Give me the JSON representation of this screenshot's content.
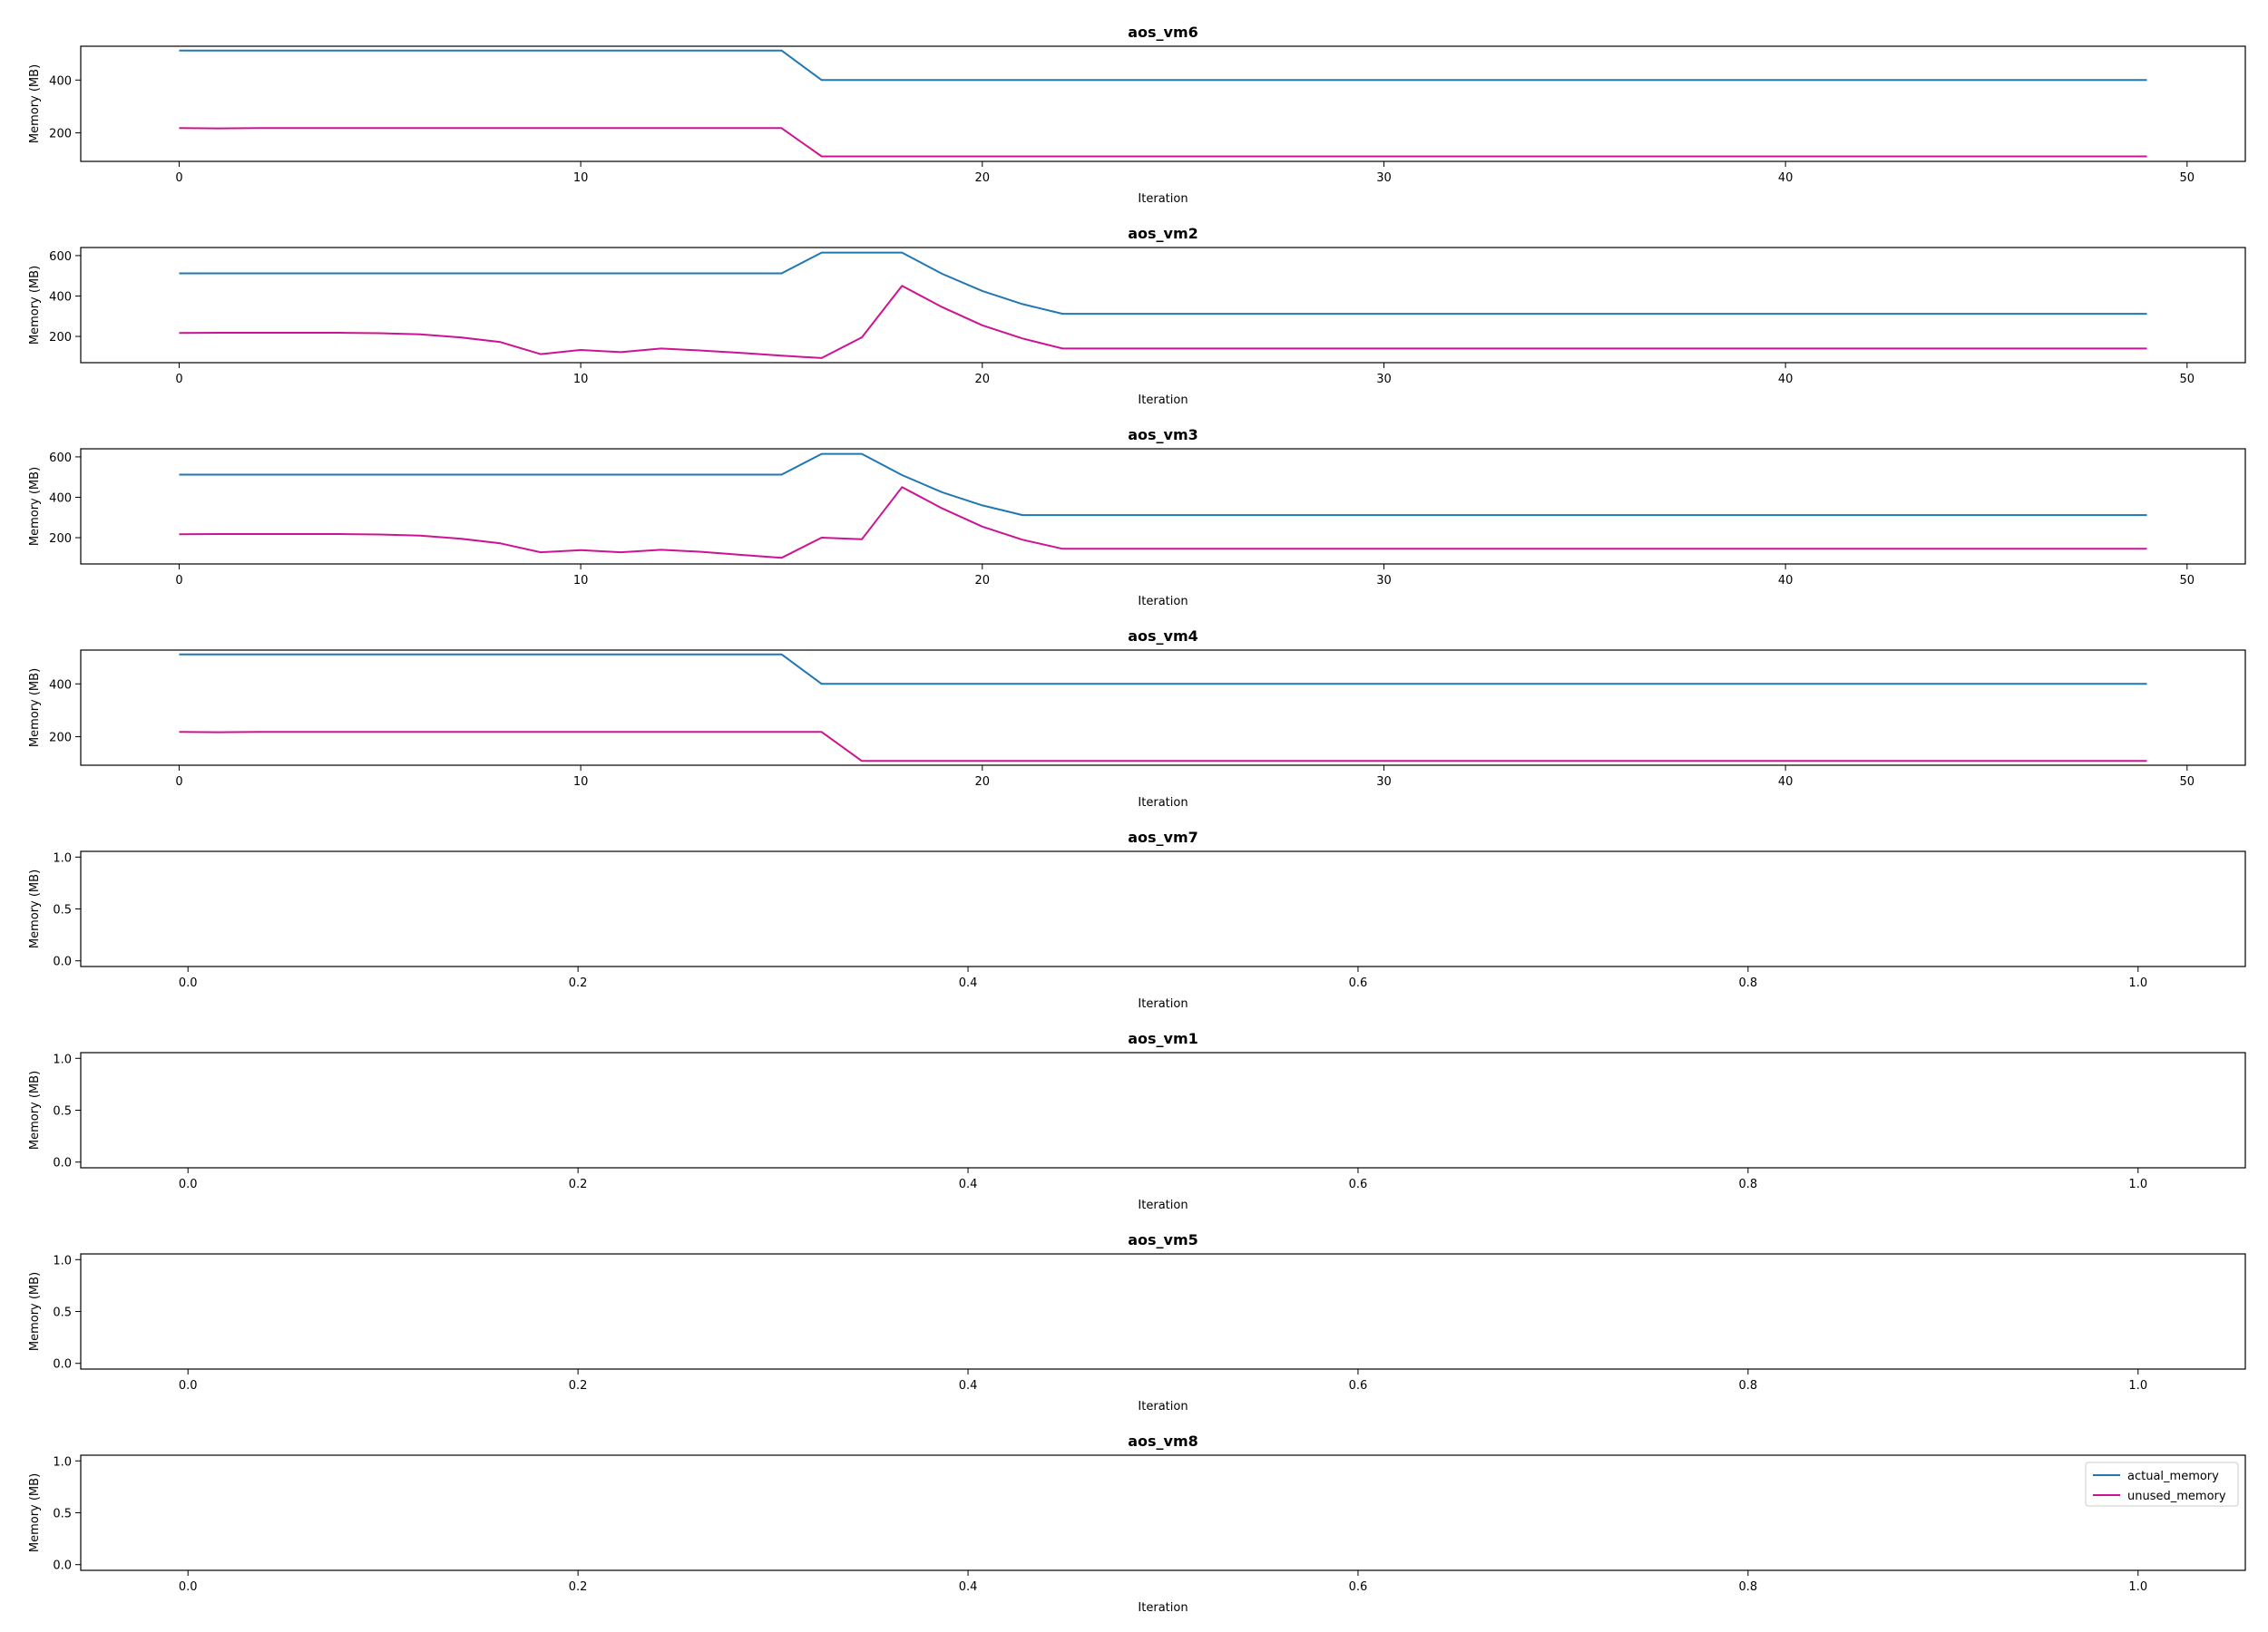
{
  "colors": {
    "actual_memory": "#1f77b4",
    "unused_memory": "#cc1493"
  },
  "legend": {
    "placement": "top-right",
    "panel_index": 7,
    "entries": [
      "actual_memory",
      "unused_memory"
    ]
  },
  "chart_data": [
    {
      "type": "line",
      "title": "aos_vm6",
      "xlabel": "Iteration",
      "ylabel": "Memory (MB)",
      "xlim": [
        -2.45,
        51.45
      ],
      "ylim": [
        92,
        528
      ],
      "xticks": [
        0,
        10,
        20,
        30,
        40,
        50
      ],
      "xtick_labels": [
        "0",
        "10",
        "20",
        "30",
        "40",
        "50"
      ],
      "yticks": [
        200,
        400
      ],
      "ytick_labels": [
        "200",
        "400"
      ],
      "series": [
        {
          "name": "actual_memory",
          "x": [
            0,
            1,
            2,
            3,
            4,
            5,
            6,
            7,
            8,
            9,
            10,
            11,
            12,
            13,
            14,
            15,
            16,
            17,
            18,
            19,
            20,
            21,
            22,
            23,
            24,
            25,
            26,
            27,
            28,
            29,
            30,
            31,
            32,
            33,
            34,
            35,
            36,
            37,
            38,
            39,
            40,
            41,
            42,
            43,
            44,
            45,
            46,
            47,
            48,
            49
          ],
          "y": [
            512,
            512,
            512,
            512,
            512,
            512,
            512,
            512,
            512,
            512,
            512,
            512,
            512,
            512,
            512,
            512,
            400,
            400,
            400,
            400,
            400,
            400,
            400,
            400,
            400,
            400,
            400,
            400,
            400,
            400,
            400,
            400,
            400,
            400,
            400,
            400,
            400,
            400,
            400,
            400,
            400,
            400,
            400,
            400,
            400,
            400,
            400,
            400,
            400,
            400
          ]
        },
        {
          "name": "unused_memory",
          "x": [
            0,
            1,
            2,
            3,
            4,
            5,
            6,
            7,
            8,
            9,
            10,
            11,
            12,
            13,
            14,
            15,
            16,
            17,
            18,
            19,
            20,
            21,
            22,
            23,
            24,
            25,
            26,
            27,
            28,
            29,
            30,
            31,
            32,
            33,
            34,
            35,
            36,
            37,
            38,
            39,
            40,
            41,
            42,
            43,
            44,
            45,
            46,
            47,
            48,
            49
          ],
          "y": [
            218,
            217,
            218,
            218,
            218,
            218,
            218,
            218,
            218,
            218,
            218,
            218,
            218,
            218,
            218,
            218,
            111,
            111,
            111,
            111,
            111,
            111,
            111,
            111,
            111,
            111,
            111,
            111,
            111,
            111,
            111,
            111,
            111,
            111,
            111,
            111,
            111,
            111,
            111,
            111,
            111,
            111,
            111,
            111,
            111,
            111,
            111,
            111,
            111,
            111
          ]
        }
      ]
    },
    {
      "type": "line",
      "title": "aos_vm2",
      "xlabel": "Iteration",
      "ylabel": "Memory (MB)",
      "xlim": [
        -2.45,
        51.45
      ],
      "ylim": [
        70,
        640
      ],
      "xticks": [
        0,
        10,
        20,
        30,
        40,
        50
      ],
      "xtick_labels": [
        "0",
        "10",
        "20",
        "30",
        "40",
        "50"
      ],
      "yticks": [
        200,
        400,
        600
      ],
      "ytick_labels": [
        "200",
        "400",
        "600"
      ],
      "series": [
        {
          "name": "actual_memory",
          "x": [
            0,
            1,
            2,
            3,
            4,
            5,
            6,
            7,
            8,
            9,
            10,
            11,
            12,
            13,
            14,
            15,
            16,
            17,
            18,
            19,
            20,
            21,
            22,
            23,
            24,
            25,
            26,
            27,
            28,
            29,
            30,
            31,
            32,
            33,
            34,
            35,
            36,
            37,
            38,
            39,
            40,
            41,
            42,
            43,
            44,
            45,
            46,
            47,
            48,
            49
          ],
          "y": [
            512,
            512,
            512,
            512,
            512,
            512,
            512,
            512,
            512,
            512,
            512,
            512,
            512,
            512,
            512,
            512,
            615,
            615,
            615,
            510,
            425,
            360,
            312,
            312,
            312,
            312,
            312,
            312,
            312,
            312,
            312,
            312,
            312,
            312,
            312,
            312,
            312,
            312,
            312,
            312,
            312,
            312,
            312,
            312,
            312,
            312,
            312,
            312,
            312,
            312
          ]
        },
        {
          "name": "unused_memory",
          "x": [
            0,
            1,
            2,
            3,
            4,
            5,
            6,
            7,
            8,
            9,
            10,
            11,
            12,
            13,
            14,
            15,
            16,
            17,
            18,
            19,
            20,
            21,
            22,
            23,
            24,
            25,
            26,
            27,
            28,
            29,
            30,
            31,
            32,
            33,
            34,
            35,
            36,
            37,
            38,
            39,
            40,
            41,
            42,
            43,
            44,
            45,
            46,
            47,
            48,
            49
          ],
          "y": [
            217,
            218,
            218,
            218,
            218,
            216,
            210,
            195,
            172,
            112,
            133,
            122,
            140,
            130,
            118,
            105,
            93,
            195,
            450,
            345,
            255,
            190,
            140,
            140,
            140,
            140,
            140,
            140,
            140,
            140,
            140,
            140,
            140,
            140,
            140,
            140,
            140,
            140,
            140,
            140,
            140,
            140,
            140,
            140,
            140,
            140,
            140,
            140,
            140,
            140
          ]
        }
      ]
    },
    {
      "type": "line",
      "title": "aos_vm3",
      "xlabel": "Iteration",
      "ylabel": "Memory (MB)",
      "xlim": [
        -2.45,
        51.45
      ],
      "ylim": [
        70,
        640
      ],
      "xticks": [
        0,
        10,
        20,
        30,
        40,
        50
      ],
      "xtick_labels": [
        "0",
        "10",
        "20",
        "30",
        "40",
        "50"
      ],
      "yticks": [
        200,
        400,
        600
      ],
      "ytick_labels": [
        "200",
        "400",
        "600"
      ],
      "series": [
        {
          "name": "actual_memory",
          "x": [
            0,
            1,
            2,
            3,
            4,
            5,
            6,
            7,
            8,
            9,
            10,
            11,
            12,
            13,
            14,
            15,
            16,
            17,
            18,
            19,
            20,
            21,
            22,
            23,
            24,
            25,
            26,
            27,
            28,
            29,
            30,
            31,
            32,
            33,
            34,
            35,
            36,
            37,
            38,
            39,
            40,
            41,
            42,
            43,
            44,
            45,
            46,
            47,
            48,
            49
          ],
          "y": [
            512,
            512,
            512,
            512,
            512,
            512,
            512,
            512,
            512,
            512,
            512,
            512,
            512,
            512,
            512,
            512,
            615,
            615,
            510,
            425,
            360,
            312,
            312,
            312,
            312,
            312,
            312,
            312,
            312,
            312,
            312,
            312,
            312,
            312,
            312,
            312,
            312,
            312,
            312,
            312,
            312,
            312,
            312,
            312,
            312,
            312,
            312,
            312,
            312,
            312
          ]
        },
        {
          "name": "unused_memory",
          "x": [
            0,
            1,
            2,
            3,
            4,
            5,
            6,
            7,
            8,
            9,
            10,
            11,
            12,
            13,
            14,
            15,
            16,
            17,
            18,
            19,
            20,
            21,
            22,
            23,
            24,
            25,
            26,
            27,
            28,
            29,
            30,
            31,
            32,
            33,
            34,
            35,
            36,
            37,
            38,
            39,
            40,
            41,
            42,
            43,
            44,
            45,
            46,
            47,
            48,
            49
          ],
          "y": [
            217,
            218,
            218,
            218,
            218,
            216,
            210,
            195,
            172,
            128,
            138,
            128,
            140,
            130,
            115,
            100,
            200,
            192,
            450,
            345,
            255,
            190,
            145,
            145,
            145,
            145,
            145,
            145,
            145,
            145,
            145,
            145,
            145,
            145,
            145,
            145,
            145,
            145,
            145,
            145,
            145,
            145,
            145,
            145,
            145,
            145,
            145,
            145,
            145,
            145
          ]
        }
      ]
    },
    {
      "type": "line",
      "title": "aos_vm4",
      "xlabel": "Iteration",
      "ylabel": "Memory (MB)",
      "xlim": [
        -2.45,
        51.45
      ],
      "ylim": [
        92,
        528
      ],
      "xticks": [
        0,
        10,
        20,
        30,
        40,
        50
      ],
      "xtick_labels": [
        "0",
        "10",
        "20",
        "30",
        "40",
        "50"
      ],
      "yticks": [
        200,
        400
      ],
      "ytick_labels": [
        "200",
        "400"
      ],
      "series": [
        {
          "name": "actual_memory",
          "x": [
            0,
            1,
            2,
            3,
            4,
            5,
            6,
            7,
            8,
            9,
            10,
            11,
            12,
            13,
            14,
            15,
            16,
            17,
            18,
            19,
            20,
            21,
            22,
            23,
            24,
            25,
            26,
            27,
            28,
            29,
            30,
            31,
            32,
            33,
            34,
            35,
            36,
            37,
            38,
            39,
            40,
            41,
            42,
            43,
            44,
            45,
            46,
            47,
            48,
            49
          ],
          "y": [
            512,
            512,
            512,
            512,
            512,
            512,
            512,
            512,
            512,
            512,
            512,
            512,
            512,
            512,
            512,
            512,
            400,
            400,
            400,
            400,
            400,
            400,
            400,
            400,
            400,
            400,
            400,
            400,
            400,
            400,
            400,
            400,
            400,
            400,
            400,
            400,
            400,
            400,
            400,
            400,
            400,
            400,
            400,
            400,
            400,
            400,
            400,
            400,
            400,
            400
          ]
        },
        {
          "name": "unused_memory",
          "x": [
            0,
            1,
            2,
            3,
            4,
            5,
            6,
            7,
            8,
            9,
            10,
            11,
            12,
            13,
            14,
            15,
            16,
            17,
            18,
            19,
            20,
            21,
            22,
            23,
            24,
            25,
            26,
            27,
            28,
            29,
            30,
            31,
            32,
            33,
            34,
            35,
            36,
            37,
            38,
            39,
            40,
            41,
            42,
            43,
            44,
            45,
            46,
            47,
            48,
            49
          ],
          "y": [
            218,
            217,
            218,
            218,
            218,
            218,
            218,
            218,
            218,
            218,
            218,
            218,
            218,
            218,
            218,
            218,
            218,
            108,
            108,
            108,
            108,
            108,
            108,
            108,
            108,
            108,
            108,
            108,
            108,
            108,
            108,
            108,
            108,
            108,
            108,
            108,
            108,
            108,
            108,
            108,
            108,
            108,
            108,
            108,
            108,
            108,
            108,
            108,
            108,
            108
          ]
        }
      ]
    },
    {
      "type": "line",
      "title": "aos_vm7",
      "xlabel": "Iteration",
      "ylabel": "Memory (MB)",
      "xlim": [
        -0.055,
        1.055
      ],
      "ylim": [
        -0.055,
        1.055
      ],
      "xticks": [
        0,
        0.2,
        0.4,
        0.6,
        0.8,
        1.0
      ],
      "xtick_labels": [
        "0.0",
        "0.2",
        "0.4",
        "0.6",
        "0.8",
        "1.0"
      ],
      "yticks": [
        0,
        0.5,
        1.0
      ],
      "ytick_labels": [
        "0.0",
        "0.5",
        "1.0"
      ],
      "series": []
    },
    {
      "type": "line",
      "title": "aos_vm1",
      "xlabel": "Iteration",
      "ylabel": "Memory (MB)",
      "xlim": [
        -0.055,
        1.055
      ],
      "ylim": [
        -0.055,
        1.055
      ],
      "xticks": [
        0,
        0.2,
        0.4,
        0.6,
        0.8,
        1.0
      ],
      "xtick_labels": [
        "0.0",
        "0.2",
        "0.4",
        "0.6",
        "0.8",
        "1.0"
      ],
      "yticks": [
        0,
        0.5,
        1.0
      ],
      "ytick_labels": [
        "0.0",
        "0.5",
        "1.0"
      ],
      "series": []
    },
    {
      "type": "line",
      "title": "aos_vm5",
      "xlabel": "Iteration",
      "ylabel": "Memory (MB)",
      "xlim": [
        -0.055,
        1.055
      ],
      "ylim": [
        -0.055,
        1.055
      ],
      "xticks": [
        0,
        0.2,
        0.4,
        0.6,
        0.8,
        1.0
      ],
      "xtick_labels": [
        "0.0",
        "0.2",
        "0.4",
        "0.6",
        "0.8",
        "1.0"
      ],
      "yticks": [
        0,
        0.5,
        1.0
      ],
      "ytick_labels": [
        "0.0",
        "0.5",
        "1.0"
      ],
      "series": []
    },
    {
      "type": "line",
      "title": "aos_vm8",
      "xlabel": "Iteration",
      "ylabel": "Memory (MB)",
      "xlim": [
        -0.055,
        1.055
      ],
      "ylim": [
        -0.055,
        1.055
      ],
      "xticks": [
        0,
        0.2,
        0.4,
        0.6,
        0.8,
        1.0
      ],
      "xtick_labels": [
        "0.0",
        "0.2",
        "0.4",
        "0.6",
        "0.8",
        "1.0"
      ],
      "yticks": [
        0,
        0.5,
        1.0
      ],
      "ytick_labels": [
        "0.0",
        "0.5",
        "1.0"
      ],
      "series": []
    }
  ]
}
